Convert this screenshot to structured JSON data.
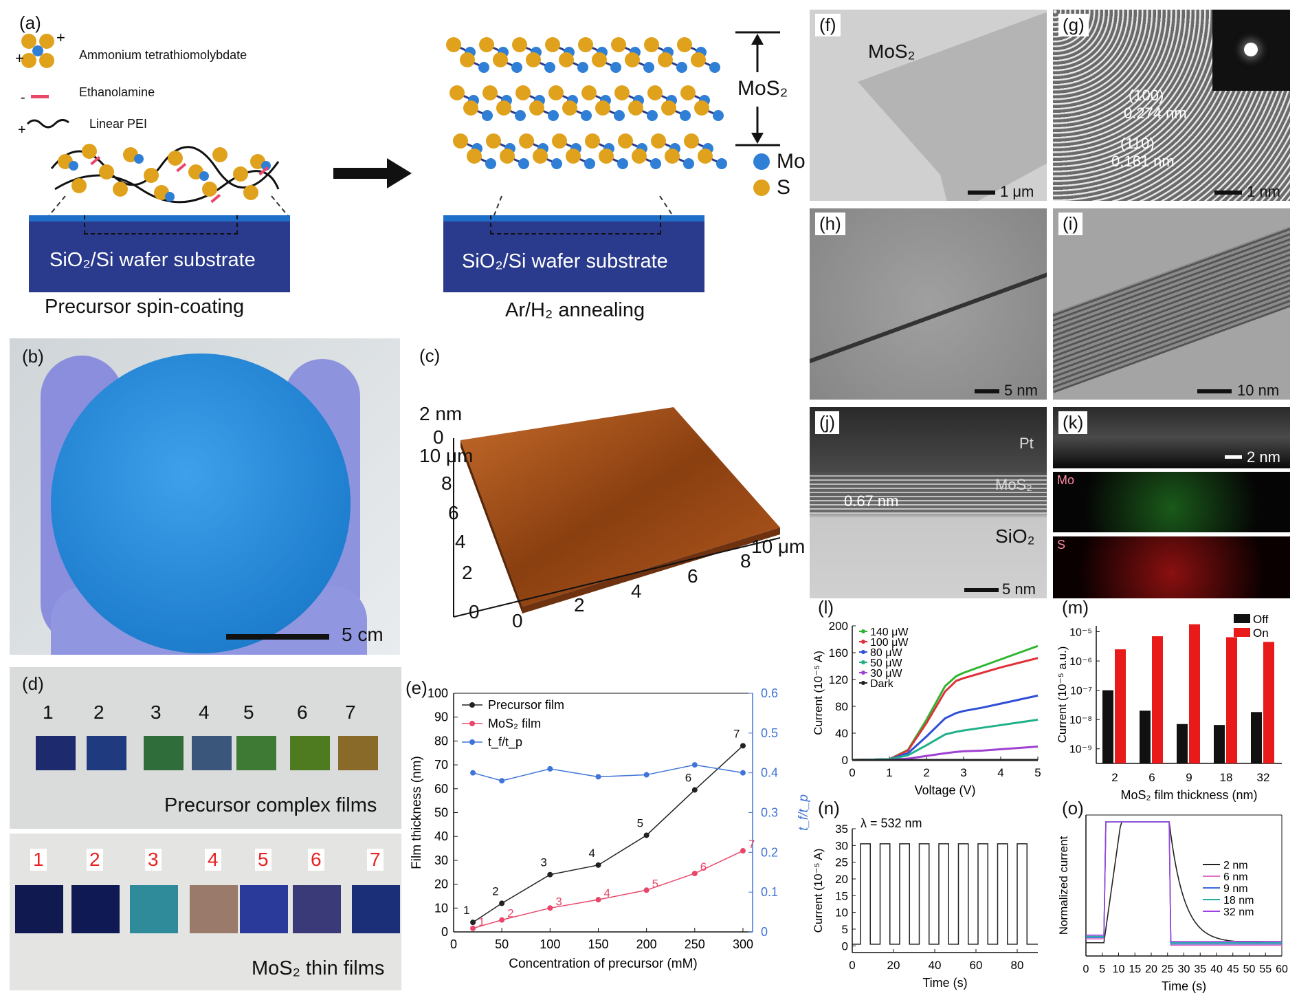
{
  "panel_a": {
    "letter": "(a)",
    "legend": {
      "precursor": "Ammonium tetrathiomolybdate",
      "ethanolamine": "Ethanolamine",
      "pei": "Linear PEI"
    },
    "substrate_left": "SiO₂/Si wafer substrate",
    "substrate_right": "SiO₂/Si wafer substrate",
    "caption_left": "Precursor spin-coating",
    "caption_right": "Ar/H₂ annealing",
    "mos2": "MoS₂",
    "mo": "Mo",
    "s": "S",
    "colors": {
      "substrate_top": "#1e6fc8",
      "substrate": "#2a3a8c",
      "mo": "#2f7fd6",
      "s": "#e0a21c"
    }
  },
  "panel_b": {
    "letter": "(b)",
    "scale": "5 cm"
  },
  "panel_c": {
    "letter": "(c)",
    "z_label": "2 nm",
    "z_zero": "0",
    "y_top": "10 μm",
    "y_ticks": [
      "8",
      "6",
      "4",
      "2",
      "0"
    ],
    "x_ticks": [
      "0",
      "2",
      "4",
      "6",
      "8"
    ],
    "x_end": "10 μm"
  },
  "panel_d": {
    "letter": "(d)",
    "top_numbers": [
      "1",
      "2",
      "3",
      "4",
      "5",
      "6",
      "7"
    ],
    "top_caption": "Precursor complex films",
    "bottom_numbers": [
      "1",
      "2",
      "3",
      "4",
      "5",
      "6",
      "7"
    ],
    "bottom_caption": "MoS₂ thin films",
    "top_colors": [
      "#1e2a6e",
      "#1f3a7e",
      "#2f6e3a",
      "#3a567a",
      "#3f7a35",
      "#4e7a20",
      "#8a6a28"
    ],
    "bottom_colors": [
      "#101a50",
      "#0f1a55",
      "#2f8a9a",
      "#9a7a6a",
      "#2a3a9a",
      "#3a3a78",
      "#1a2f78"
    ]
  },
  "panel_f": {
    "letter": "(f)",
    "label": "MoS₂",
    "scale": "1 μm"
  },
  "panel_g": {
    "letter": "(g)",
    "plane1": "(100)",
    "d1": "0.274 nm",
    "plane2": "(110)",
    "d2": "0.161 nm",
    "scale": "1 nm"
  },
  "panel_h": {
    "letter": "(h)",
    "scale": "5 nm"
  },
  "panel_i_tem": {
    "letter": "(i)",
    "scale": "10 nm"
  },
  "panel_j": {
    "letter": "(j)",
    "pt": "Pt",
    "mos2": "MoS₂",
    "sio2": "SiO₂",
    "spacing": "0.67 nm",
    "scale": "5 nm"
  },
  "panel_k": {
    "letter": "(k)",
    "scale": "2 nm",
    "mo": "Mo",
    "s": "S"
  },
  "chart_data": [
    {
      "panel": "(e)",
      "type": "line",
      "xlabel": "Concentration of precursor (mM)",
      "ylabel": "Film thickness (nm)",
      "y2label": "t_f/t_p",
      "x": [
        20,
        50,
        100,
        150,
        200,
        250,
        300
      ],
      "xticks": [
        0,
        50,
        100,
        150,
        200,
        250,
        300
      ],
      "ylim": [
        0,
        100
      ],
      "yticks": [
        0,
        10,
        20,
        30,
        40,
        50,
        60,
        70,
        80,
        90,
        100
      ],
      "y2lim": [
        0,
        0.6
      ],
      "y2ticks": [
        0,
        0.1,
        0.2,
        0.3,
        0.4,
        0.5,
        0.6
      ],
      "series": [
        {
          "name": "Precursor film",
          "axis": "left",
          "color": "#222222",
          "values": [
            4,
            12,
            24,
            28,
            40.5,
            59.5,
            78
          ],
          "point_labels": [
            "1",
            "2",
            "3",
            "4",
            "5",
            "6",
            "7"
          ]
        },
        {
          "name": "MoS₂ film",
          "axis": "left",
          "color": "#e8476a",
          "values": [
            1.5,
            5,
            10,
            13.5,
            17.5,
            24.5,
            34
          ],
          "point_labels": [
            "1",
            "2",
            "3",
            "4",
            "5",
            "6",
            "7"
          ]
        },
        {
          "name": "t_f/t_p",
          "axis": "right",
          "color": "#3f74d8",
          "values": [
            0.4,
            0.38,
            0.41,
            0.39,
            0.395,
            0.42,
            0.4
          ]
        }
      ],
      "legend_position": "top-left"
    },
    {
      "panel": "(l)",
      "type": "line",
      "xlabel": "Voltage (V)",
      "ylabel": "Current (10⁻⁵ A)",
      "xlim": [
        0,
        5
      ],
      "xticks": [
        0,
        1,
        2,
        3,
        4,
        5
      ],
      "ylim": [
        0,
        200
      ],
      "yticks": [
        0,
        40,
        80,
        120,
        160,
        200
      ],
      "x": [
        0,
        1,
        1.5,
        2,
        2.5,
        2.8,
        3,
        3.5,
        4,
        4.5,
        5
      ],
      "series": [
        {
          "name": "140 μW",
          "color": "#2fb52f",
          "values": [
            0,
            1,
            15,
            60,
            110,
            125,
            130,
            140,
            150,
            160,
            170
          ]
        },
        {
          "name": "100 μW",
          "color": "#e0303a",
          "values": [
            0,
            1,
            14,
            55,
            102,
            118,
            122,
            130,
            138,
            145,
            152
          ]
        },
        {
          "name": "80 μW",
          "color": "#2f4fd6",
          "values": [
            0,
            1,
            10,
            35,
            62,
            70,
            73,
            78,
            84,
            90,
            96
          ]
        },
        {
          "name": "50 μW",
          "color": "#20b08a",
          "values": [
            0,
            1,
            7,
            22,
            38,
            42,
            44,
            48,
            52,
            56,
            60
          ]
        },
        {
          "name": "30 μW",
          "color": "#a040d0",
          "values": [
            0,
            0,
            2,
            6,
            10,
            12,
            13,
            14,
            16,
            18,
            20
          ]
        },
        {
          "name": "Dark",
          "color": "#222222",
          "values": [
            0,
            0,
            0,
            0,
            0,
            0,
            0,
            0,
            0,
            0,
            0
          ]
        }
      ],
      "legend_position": "top-left"
    },
    {
      "panel": "(m)",
      "type": "bar",
      "xlabel": "MoS₂ film thickness (nm)",
      "ylabel": "Current (10⁻⁵ a.u.)",
      "log_scale": true,
      "categories": [
        "2",
        "6",
        "9",
        "18",
        "32"
      ],
      "ytick_labels": [
        "10⁻⁹",
        "10⁻⁸",
        "10⁻⁷",
        "10⁻⁶",
        "10⁻⁵"
      ],
      "ylim_exponent": [
        -9.5,
        -4.8
      ],
      "series": [
        {
          "name": "Off",
          "color": "#111111",
          "values": [
            1e-07,
            2e-08,
            7e-09,
            6.5e-09,
            1.8e-08
          ]
        },
        {
          "name": "On",
          "color": "#e81a1a",
          "values": [
            2.5e-06,
            7e-06,
            1.8e-05,
            6.5e-06,
            4.5e-06
          ]
        }
      ],
      "legend_position": "top-right"
    },
    {
      "panel": "(n)",
      "type": "line",
      "annotation": "λ = 532 nm",
      "xlabel": "Time (s)",
      "ylabel": "Current (10⁻⁵ A)",
      "xlim": [
        0,
        90
      ],
      "xticks": [
        0,
        20,
        40,
        60,
        80
      ],
      "ylim": [
        -2,
        35
      ],
      "yticks": [
        0,
        5,
        10,
        15,
        20,
        25,
        30,
        35
      ],
      "high": 30.5,
      "low": 0.5,
      "period_s": 9.5,
      "first_on_s": 4,
      "cycles": 9,
      "color": "#222222"
    },
    {
      "panel": "(o)",
      "type": "line",
      "xlabel": "Time (s)",
      "ylabel": "Normalized current",
      "xlim": [
        0,
        60
      ],
      "xticks": [
        0,
        5,
        10,
        15,
        20,
        25,
        30,
        35,
        40,
        45,
        50,
        55,
        60
      ],
      "series": [
        {
          "name": "2 nm",
          "color": "#222222"
        },
        {
          "name": "6 nm",
          "color": "#e070c0"
        },
        {
          "name": "9 nm",
          "color": "#3a6ad8"
        },
        {
          "name": "18 nm",
          "color": "#20b09a"
        },
        {
          "name": "32 nm",
          "color": "#a040e0"
        }
      ],
      "on_s": 5.5,
      "off_s": 25.5,
      "legend_position": "right"
    }
  ],
  "panel_labels": {
    "e": "(e)",
    "l": "(l)",
    "m": "(m)",
    "n": "(n)",
    "o": "(o)"
  }
}
